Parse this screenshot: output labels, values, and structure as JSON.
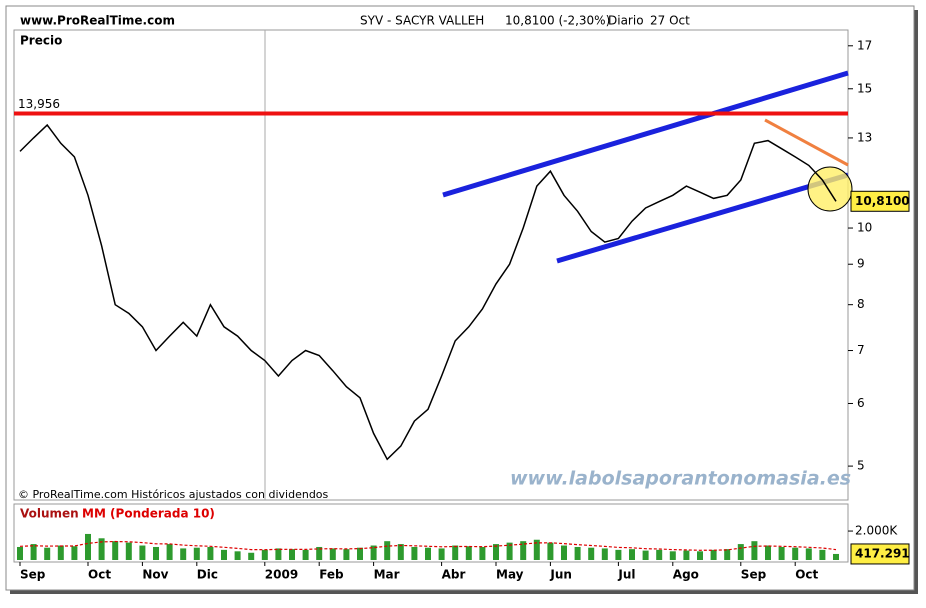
{
  "header": {
    "site": "www.ProRealTime.com",
    "title": "SYV - SACYR VALLEH",
    "quote": "10,8100 (-2,30%)",
    "period": "Diario",
    "date": "27 Oct"
  },
  "chart_data": [
    {
      "type": "line",
      "y_label": "Precio",
      "log_scale": true,
      "color": "#000000",
      "categories": [
        "Sep",
        null,
        null,
        null,
        null,
        "Oct",
        null,
        null,
        null,
        "Nov",
        null,
        null,
        null,
        "Dic",
        null,
        null,
        null,
        null,
        "2009",
        null,
        null,
        null,
        "Feb",
        null,
        null,
        null,
        "Mar",
        null,
        null,
        null,
        null,
        "Abr",
        null,
        null,
        null,
        "May",
        null,
        null,
        null,
        "Jun",
        null,
        null,
        null,
        null,
        "Jul",
        null,
        null,
        null,
        "Ago",
        null,
        null,
        null,
        null,
        "Sep",
        null,
        null,
        null,
        "Oct",
        null,
        null,
        null
      ],
      "values": [
        12.5,
        13.0,
        13.5,
        12.8,
        12.3,
        11.0,
        9.5,
        8.0,
        7.8,
        7.5,
        7.0,
        7.3,
        7.6,
        7.3,
        8.0,
        7.5,
        7.3,
        7.0,
        6.8,
        6.5,
        6.8,
        7.0,
        6.9,
        6.6,
        6.3,
        6.1,
        5.5,
        5.1,
        5.3,
        5.7,
        5.9,
        6.5,
        7.2,
        7.5,
        7.9,
        8.5,
        9.0,
        10.0,
        11.3,
        11.8,
        11.0,
        10.5,
        9.9,
        9.6,
        9.7,
        10.2,
        10.6,
        10.8,
        11.0,
        11.3,
        11.1,
        10.9,
        11.0,
        11.5,
        12.8,
        12.9,
        12.6,
        12.3,
        12.0,
        11.5,
        10.81
      ],
      "ylim": [
        4.53,
        17.8
      ],
      "yticks": [
        5,
        6,
        7,
        8,
        9,
        10,
        13,
        15,
        17
      ],
      "resistance": {
        "value": 13.956,
        "label": "13,956"
      },
      "last_value": {
        "value": 10.81,
        "label": "10,8100"
      },
      "note": "© ProRealTime.com Históricos ajustados con dividendos",
      "watermark": "www.labolsaporantonomasia.es"
    },
    {
      "type": "bar",
      "series": [
        {
          "name": "Volumen",
          "color": "#2e9a2e",
          "values": [
            900000,
            1100000,
            850000,
            1000000,
            950000,
            1800000,
            1500000,
            1300000,
            1200000,
            1000000,
            900000,
            1100000,
            800000,
            850000,
            900000,
            700000,
            600000,
            500000,
            700000,
            800000,
            750000,
            700000,
            900000,
            800000,
            750000,
            850000,
            1000000,
            1300000,
            1100000,
            900000,
            850000,
            800000,
            1000000,
            950000,
            900000,
            1100000,
            1200000,
            1300000,
            1400000,
            1200000,
            1000000,
            900000,
            850000,
            800000,
            700000,
            750000,
            650000,
            700000,
            600000,
            650000,
            600000,
            700000,
            750000,
            1100000,
            1300000,
            1000000,
            900000,
            850000,
            800000,
            700000,
            417291
          ]
        },
        {
          "name": "MM (Ponderada 10)",
          "color": "#dd0000",
          "values": [
            950000,
            980000,
            960000,
            970000,
            965000,
            1150000,
            1250000,
            1280000,
            1260000,
            1200000,
            1120000,
            1110000,
            1030000,
            980000,
            950000,
            880000,
            800000,
            720000,
            710000,
            730000,
            740000,
            730000,
            770000,
            780000,
            770000,
            790000,
            850000,
            960000,
            1000000,
            980000,
            950000,
            910000,
            930000,
            930000,
            920000,
            960000,
            1020000,
            1100000,
            1180000,
            1190000,
            1130000,
            1060000,
            1000000,
            940000,
            870000,
            840000,
            780000,
            760000,
            720000,
            700000,
            670000,
            680000,
            700000,
            820000,
            950000,
            970000,
            950000,
            920000,
            880000,
            830000,
            720000
          ]
        }
      ],
      "ylim": [
        0,
        3800000
      ],
      "yticks": [
        {
          "value": 2000000,
          "label": "2.000K"
        }
      ],
      "last_value": {
        "value": 417291,
        "label": "417.291"
      }
    }
  ]
}
